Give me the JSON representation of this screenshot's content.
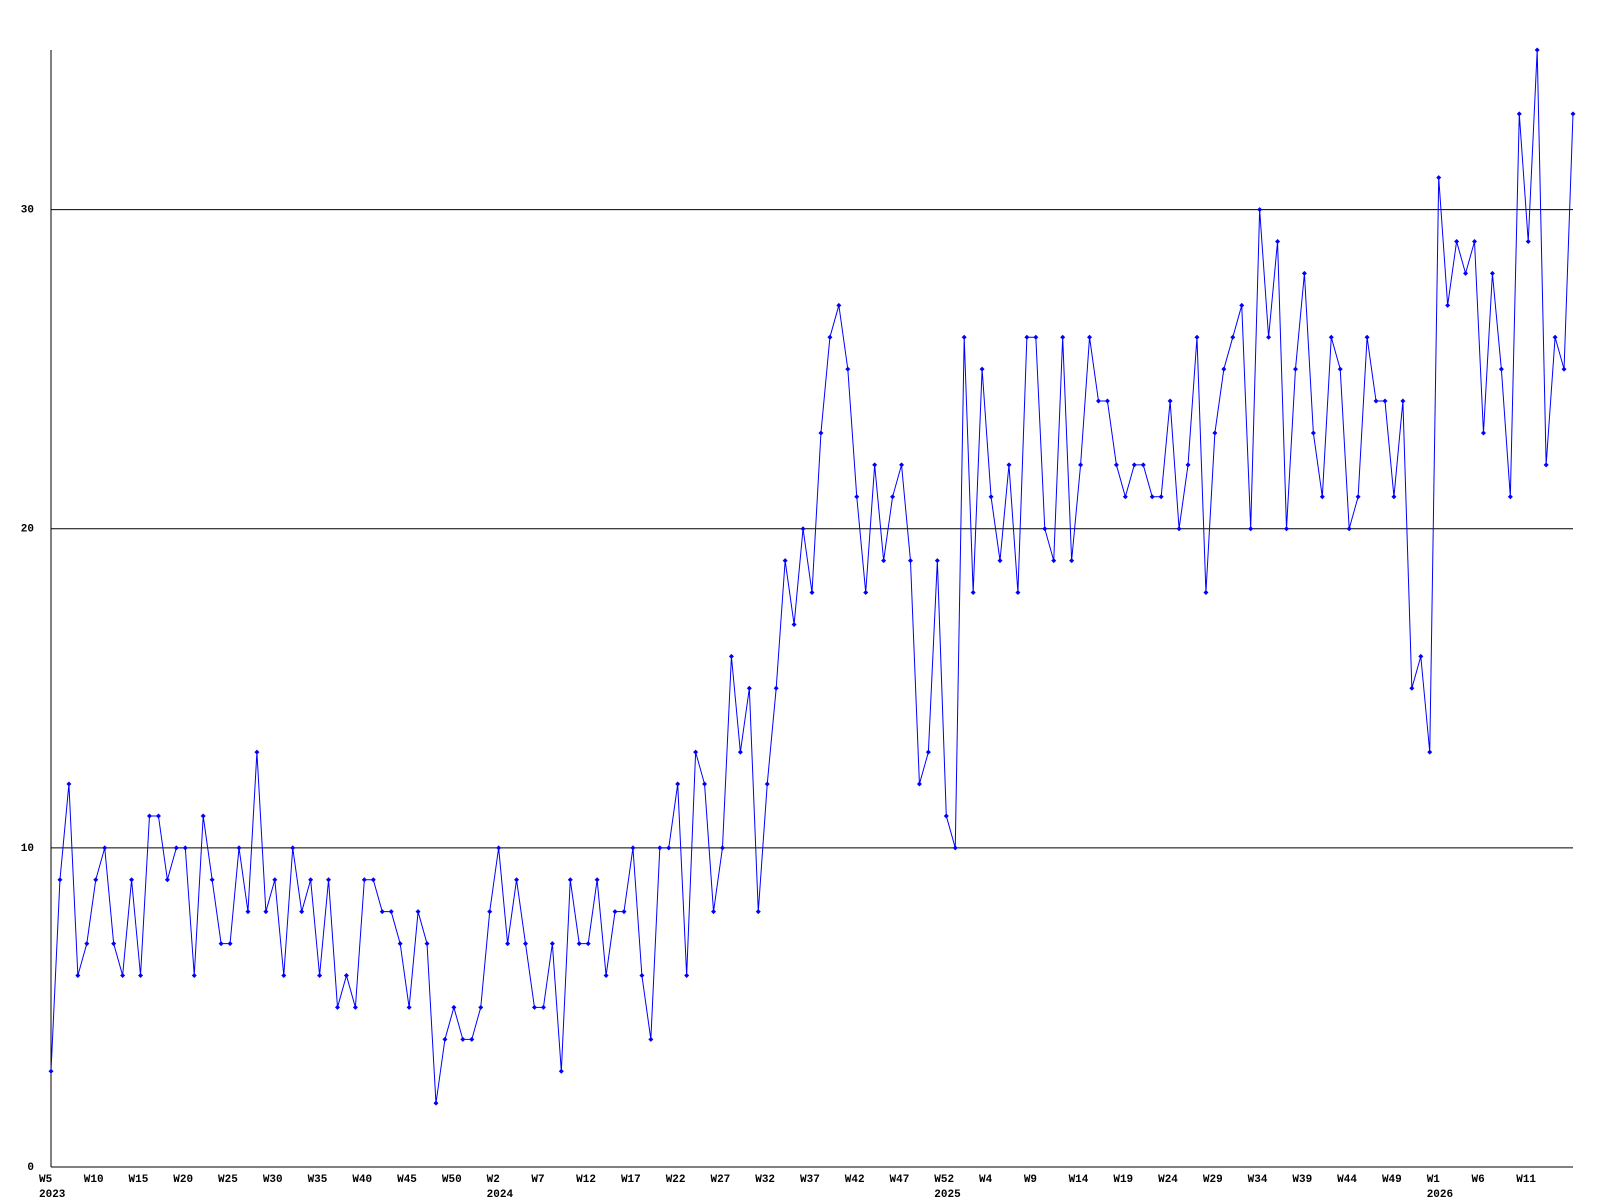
{
  "chart_data": {
    "type": "line",
    "categories": [
      "W5",
      null,
      null,
      null,
      null,
      "W10",
      null,
      null,
      null,
      null,
      "W15",
      null,
      null,
      null,
      null,
      "W20",
      null,
      null,
      null,
      null,
      "W25",
      null,
      null,
      null,
      null,
      "W30",
      null,
      null,
      null,
      null,
      "W35",
      null,
      null,
      null,
      null,
      "W40",
      null,
      null,
      null,
      null,
      "W45",
      null,
      null,
      null,
      null,
      "W50",
      null,
      null,
      null,
      null,
      "W2",
      null,
      null,
      null,
      null,
      "W7",
      null,
      null,
      null,
      null,
      "W12",
      null,
      null,
      null,
      null,
      "W17",
      null,
      null,
      null,
      null,
      "W22",
      null,
      null,
      null,
      null,
      "W27",
      null,
      null,
      null,
      null,
      "W32",
      null,
      null,
      null,
      null,
      "W37",
      null,
      null,
      null,
      null,
      "W42",
      null,
      null,
      null,
      null,
      "W47",
      null,
      null,
      null,
      null,
      "W52",
      null,
      null,
      null,
      null,
      "W4",
      null,
      null,
      null,
      null,
      "W9",
      null,
      null,
      null,
      null,
      "W14",
      null,
      null,
      null,
      null,
      "W19",
      null,
      null,
      null,
      null,
      "W24",
      null,
      null,
      null,
      null,
      "W29",
      null,
      null,
      null,
      null,
      "W34",
      null,
      null,
      null,
      null,
      "W39",
      null,
      null,
      null,
      null,
      "W44",
      null,
      null,
      null,
      null,
      "W49",
      null,
      null,
      null,
      null,
      "W1",
      null,
      null,
      null,
      null,
      "W6",
      null,
      null,
      null,
      null,
      "W11",
      null,
      null,
      null,
      null,
      null
    ],
    "year_labels": [
      "2023",
      null,
      null,
      null,
      null,
      null,
      null,
      null,
      null,
      null,
      null,
      null,
      null,
      null,
      null,
      null,
      null,
      null,
      null,
      null,
      null,
      null,
      null,
      null,
      null,
      null,
      null,
      null,
      null,
      null,
      null,
      null,
      null,
      null,
      null,
      null,
      null,
      null,
      null,
      null,
      null,
      null,
      null,
      null,
      null,
      null,
      null,
      null,
      null,
      null,
      "2024",
      null,
      null,
      null,
      null,
      null,
      null,
      null,
      null,
      null,
      null,
      null,
      null,
      null,
      null,
      null,
      null,
      null,
      null,
      null,
      null,
      null,
      null,
      null,
      null,
      null,
      null,
      null,
      null,
      null,
      null,
      null,
      null,
      null,
      null,
      null,
      null,
      null,
      null,
      null,
      null,
      null,
      null,
      null,
      null,
      null,
      null,
      null,
      null,
      null,
      "2025",
      null,
      null,
      null,
      null,
      null,
      null,
      null,
      null,
      null,
      null,
      null,
      null,
      null,
      null,
      null,
      null,
      null,
      null,
      null,
      null,
      null,
      null,
      null,
      null,
      null,
      null,
      null,
      null,
      null,
      null,
      null,
      null,
      null,
      null,
      null,
      null,
      null,
      null,
      null,
      null,
      null,
      null,
      null,
      null,
      null,
      null,
      null,
      null,
      null,
      null,
      null,
      null,
      null,
      null,
      "2026",
      null,
      null,
      null,
      null,
      null,
      null,
      null,
      null,
      null,
      null,
      null,
      null,
      null,
      null,
      null
    ],
    "series": [
      {
        "color": "#0000ff",
        "values": [
          3,
          9,
          12,
          6,
          7,
          9,
          10,
          7,
          6,
          9,
          6,
          11,
          11,
          9,
          10,
          10,
          6,
          11,
          9,
          7,
          7,
          10,
          8,
          13,
          8,
          9,
          6,
          10,
          8,
          9,
          6,
          9,
          5,
          6,
          5,
          9,
          9,
          8,
          8,
          7,
          5,
          8,
          7,
          2,
          4,
          5,
          4,
          4,
          5,
          8,
          10,
          7,
          9,
          7,
          5,
          5,
          7,
          3,
          9,
          7,
          7,
          9,
          6,
          8,
          8,
          10,
          6,
          4,
          10,
          10,
          12,
          6,
          13,
          12,
          8,
          10,
          16,
          13,
          15,
          8,
          12,
          15,
          19,
          17,
          20,
          18,
          23,
          26,
          27,
          25,
          21,
          18,
          22,
          19,
          21,
          22,
          19,
          12,
          13,
          19,
          11,
          10,
          26,
          18,
          25,
          21,
          19,
          22,
          18,
          26,
          26,
          20,
          19,
          26,
          19,
          22,
          26,
          24,
          24,
          22,
          21,
          22,
          22,
          21,
          21,
          24,
          20,
          22,
          26,
          18,
          23,
          25,
          26,
          27,
          20,
          30,
          26,
          29,
          20,
          25,
          28,
          23,
          21,
          26,
          25,
          20,
          21,
          26,
          24,
          24,
          21,
          24,
          15,
          16,
          13,
          31,
          27,
          29,
          28,
          29,
          23,
          28,
          25,
          21,
          33,
          29,
          35,
          22,
          26,
          25,
          33
        ]
      }
    ],
    "ylim": [
      0,
      35
    ],
    "yticks": [
      0,
      10,
      20,
      30
    ],
    "grid": true
  }
}
